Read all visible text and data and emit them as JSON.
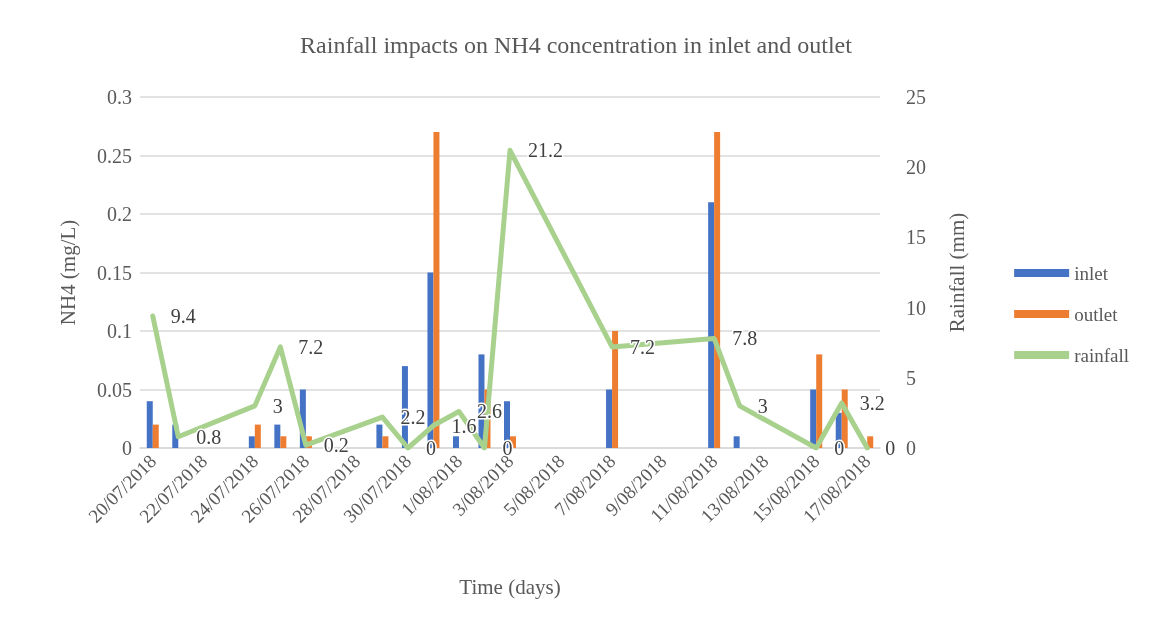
{
  "chart_data": {
    "type": "bar",
    "title": "Rainfall impacts on NH4 concentration in inlet and outlet",
    "xlabel": "Time (days)",
    "ylabel": "NH4 (mg/L)",
    "y2label": "Rainfall (mm)",
    "x": [
      "2018-07-20",
      "2018-07-21",
      "2018-07-24",
      "2018-07-25",
      "2018-07-26",
      "2018-07-29",
      "2018-07-30",
      "2018-07-31",
      "2018-08-01",
      "2018-08-02",
      "2018-08-03",
      "2018-08-07",
      "2018-08-11",
      "2018-08-12",
      "2018-08-15",
      "2018-08-16",
      "2018-08-17"
    ],
    "series": [
      {
        "name": "inlet",
        "color": "#4472c4",
        "values": [
          0.04,
          0.02,
          0.01,
          0.02,
          0.05,
          0.02,
          0.07,
          0.15,
          0.01,
          0.08,
          0.04,
          0.05,
          0.21,
          0.01,
          0.05,
          0.03,
          null
        ]
      },
      {
        "name": "outlet",
        "color": "#ed7d31",
        "values": [
          0.02,
          null,
          0.02,
          0.01,
          0.01,
          0.01,
          null,
          0.27,
          null,
          0.05,
          0.01,
          0.1,
          0.27,
          null,
          0.08,
          0.05,
          0.01
        ]
      },
      {
        "name": "rainfall",
        "type": "line",
        "axis": "y2",
        "color": "#a9d18e",
        "values": [
          9.4,
          0.8,
          3,
          7.2,
          0.2,
          2.2,
          0,
          1.6,
          2.6,
          0,
          21.2,
          7.2,
          7.8,
          3,
          0,
          3.2,
          0
        ],
        "value_labels": [
          "9.4",
          "0.8",
          "3",
          "7.2",
          "0.2",
          "2.2",
          "0",
          "1.6",
          "2.6",
          "0",
          "21.2",
          "7.2",
          "7.8",
          "3",
          "0",
          "3.2",
          "0"
        ]
      }
    ],
    "xlim": [
      "2018-07-19T12:00",
      "2018-08-17T12:00"
    ],
    "xticks": [
      {
        "value": "2018-07-20",
        "label": "20/07/2018"
      },
      {
        "value": "2018-07-22",
        "label": "22/07/2018"
      },
      {
        "value": "2018-07-24",
        "label": "24/07/2018"
      },
      {
        "value": "2018-07-26",
        "label": "26/07/2018"
      },
      {
        "value": "2018-07-28",
        "label": "28/07/2018"
      },
      {
        "value": "2018-07-30",
        "label": "30/07/2018"
      },
      {
        "value": "2018-08-01",
        "label": "1/08/2018"
      },
      {
        "value": "2018-08-03",
        "label": "3/08/2018"
      },
      {
        "value": "2018-08-05",
        "label": "5/08/2018"
      },
      {
        "value": "2018-08-07",
        "label": "7/08/2018"
      },
      {
        "value": "2018-08-09",
        "label": "9/08/2018"
      },
      {
        "value": "2018-08-11",
        "label": "11/08/2018"
      },
      {
        "value": "2018-08-13",
        "label": "13/08/2018"
      },
      {
        "value": "2018-08-15",
        "label": "15/08/2018"
      },
      {
        "value": "2018-08-17",
        "label": "17/08/2018"
      }
    ],
    "ylim": [
      0,
      0.3
    ],
    "yticks": [
      0,
      0.05,
      0.1,
      0.15,
      0.2,
      0.25,
      0.3
    ],
    "y2lim": [
      0,
      25
    ],
    "y2ticks": [
      0,
      5,
      10,
      15,
      20,
      25
    ],
    "grid": "y",
    "legend": "right",
    "marker": "none",
    "line_style": "solid"
  }
}
